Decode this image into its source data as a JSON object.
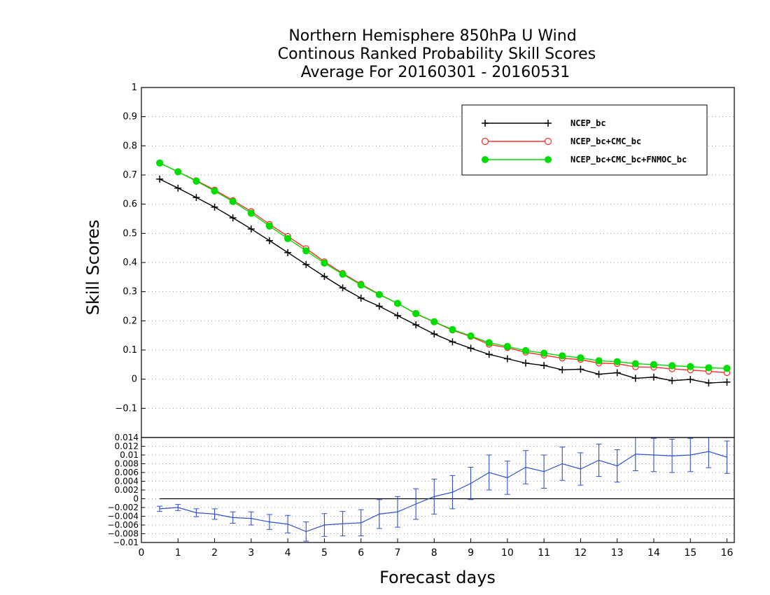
{
  "chart_data": [
    {
      "type": "line",
      "title": [
        "Northern Hemisphere 850hPa U Wind",
        "Continous Ranked Probability Skill Scores",
        "Average For 20160301 - 20160531"
      ],
      "ylabel": "Skill Scores",
      "xlim": [
        0,
        16.2
      ],
      "ylim": [
        -0.2,
        1.0
      ],
      "yticks": [
        -0.1,
        0,
        0.1,
        0.2,
        0.3,
        0.4,
        0.5,
        0.6,
        0.7,
        0.8,
        0.9,
        1
      ],
      "ytick_labels": [
        "−0.1",
        "0",
        "0.1",
        "0.2",
        "0.3",
        "0.4",
        "0.5",
        "0.6",
        "0.7",
        "0.8",
        "0.9",
        "1"
      ],
      "grid": "horizontal dotted",
      "legend_position": "top-right",
      "x": [
        0.5,
        1,
        1.5,
        2,
        2.5,
        3,
        3.5,
        4,
        4.5,
        5,
        5.5,
        6,
        6.5,
        7,
        7.5,
        8,
        8.5,
        9,
        9.5,
        10,
        10.5,
        11,
        11.5,
        12,
        12.5,
        13,
        13.5,
        14,
        14.5,
        15,
        15.5,
        16
      ],
      "series": [
        {
          "name": "NCEP_bc",
          "color": "#000000",
          "marker": "plus",
          "values": [
            0.686,
            0.655,
            0.623,
            0.59,
            0.553,
            0.515,
            0.475,
            0.434,
            0.393,
            0.352,
            0.313,
            0.278,
            0.25,
            0.218,
            0.186,
            0.155,
            0.128,
            0.106,
            0.085,
            0.07,
            0.055,
            0.047,
            0.032,
            0.034,
            0.017,
            0.022,
            0.003,
            0.007,
            -0.005,
            -0.001,
            -0.013,
            -0.01
          ]
        },
        {
          "name": "NCEP_bc+CMC_bc",
          "color": "#ff3030",
          "marker": "open-circle",
          "values": [
            0.741,
            0.711,
            0.681,
            0.649,
            0.613,
            0.575,
            0.531,
            0.49,
            0.448,
            0.403,
            0.363,
            0.326,
            0.291,
            0.26,
            0.224,
            0.196,
            0.168,
            0.146,
            0.119,
            0.108,
            0.092,
            0.082,
            0.072,
            0.067,
            0.055,
            0.053,
            0.042,
            0.041,
            0.035,
            0.031,
            0.027,
            0.022
          ]
        },
        {
          "name": "NCEP_bc+CMC_bc+FNMOC_bc",
          "color": "#00dd00",
          "marker": "filled-circle",
          "values": [
            0.741,
            0.711,
            0.679,
            0.645,
            0.609,
            0.569,
            0.525,
            0.482,
            0.44,
            0.398,
            0.36,
            0.323,
            0.29,
            0.26,
            0.225,
            0.197,
            0.17,
            0.148,
            0.125,
            0.112,
            0.098,
            0.089,
            0.08,
            0.073,
            0.063,
            0.06,
            0.053,
            0.05,
            0.046,
            0.043,
            0.039,
            0.037
          ]
        }
      ]
    },
    {
      "type": "line",
      "xlabel": "Forecast days",
      "xlim": [
        0,
        16.2
      ],
      "ylim": [
        -0.01,
        0.014
      ],
      "xticks": [
        0,
        1,
        2,
        3,
        4,
        5,
        6,
        7,
        8,
        9,
        10,
        11,
        12,
        13,
        14,
        15,
        16
      ],
      "yticks": [
        -0.01,
        -0.008,
        -0.006,
        -0.004,
        -0.002,
        0,
        0.002,
        0.004,
        0.006,
        0.008,
        0.01,
        0.012,
        0.014
      ],
      "ytick_labels": [
        "−0.01",
        "−0.008",
        "−0.006",
        "−0.004",
        "−0.002",
        "0",
        "0.002",
        "0.004",
        "0.006",
        "0.008",
        "0.01",
        "0.012",
        "0.014"
      ],
      "grid": "horizontal dotted",
      "zero_line": true,
      "x": [
        0.5,
        1,
        1.5,
        2,
        2.5,
        3,
        3.5,
        4,
        4.5,
        5,
        5.5,
        6,
        6.5,
        7,
        7.5,
        8,
        8.5,
        9,
        9.5,
        10,
        10.5,
        11,
        11.5,
        12,
        12.5,
        13,
        13.5,
        14,
        14.5,
        15,
        15.5,
        16
      ],
      "series": [
        {
          "color": "#3050d0",
          "marker": "errorbar",
          "values": [
            -0.0023,
            -0.002,
            -0.0032,
            -0.0035,
            -0.0043,
            -0.0045,
            -0.0053,
            -0.0058,
            -0.0075,
            -0.006,
            -0.0057,
            -0.0055,
            -0.0035,
            -0.003,
            -0.0012,
            0.0005,
            0.0015,
            0.0035,
            0.006,
            0.0048,
            0.0072,
            0.0062,
            0.008,
            0.0068,
            0.0088,
            0.0075,
            0.0102,
            0.01,
            0.0098,
            0.01,
            0.0108,
            0.0095
          ],
          "error": [
            0.0006,
            0.0007,
            0.0009,
            0.0012,
            0.0013,
            0.0015,
            0.0017,
            0.002,
            0.0022,
            0.0026,
            0.0028,
            0.003,
            0.0033,
            0.0035,
            0.0035,
            0.004,
            0.0038,
            0.0037,
            0.004,
            0.0038,
            0.0038,
            0.0038,
            0.0038,
            0.0037,
            0.0037,
            0.0037,
            0.0038,
            0.0038,
            0.0038,
            0.0038,
            0.0037,
            0.0037
          ]
        }
      ]
    }
  ]
}
